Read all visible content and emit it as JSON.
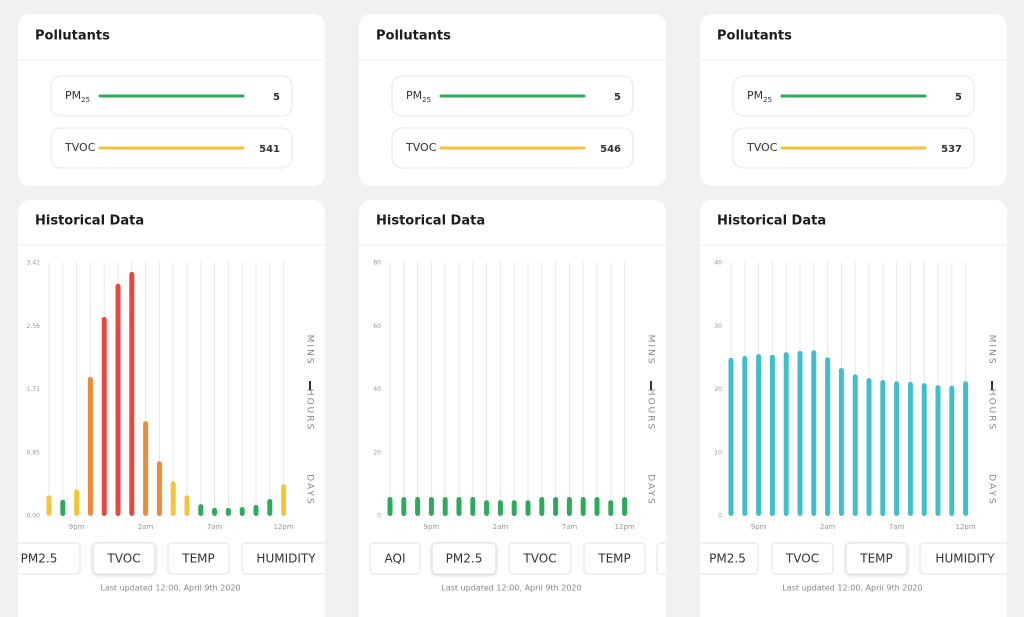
{
  "panels": [
    {
      "pollutants_title": "Pollutants",
      "pollutants": [
        {
          "label": "PM",
          "sub": "25",
          "value": 5,
          "color": "#2eaa5c"
        },
        {
          "label": "TVOC",
          "value": 541,
          "color": "#f5c43a"
        }
      ],
      "history_title": "Historical Data",
      "chart": {
        "type": "bar",
        "categories": [
          null,
          null,
          "9pm",
          null,
          null,
          null,
          null,
          "2am",
          null,
          null,
          null,
          null,
          "7am",
          null,
          null,
          null,
          null,
          "12pm"
        ],
        "values": [
          0.28,
          0.22,
          0.36,
          1.88,
          2.69,
          3.14,
          3.3,
          1.28,
          0.74,
          0.47,
          0.28,
          0.16,
          0.11,
          0.11,
          0.12,
          0.15,
          0.23,
          0.43
        ],
        "colors": [
          "#f5c43a",
          "#2eaa5c",
          "#f5c43a",
          "#ee8a3a",
          "#e8463f",
          "#e8463f",
          "#e8463f",
          "#ee8a3a",
          "#ee8a3a",
          "#f5c43a",
          "#f5c43a",
          "#2eaa5c",
          "#2eaa5c",
          "#2eaa5c",
          "#2eaa5c",
          "#2eaa5c",
          "#2eaa5c",
          "#f5c43a"
        ],
        "ylim": [
          0,
          3.42
        ],
        "yticks": [
          {
            "value": 0,
            "label": "0.00"
          },
          0.85,
          1.71,
          2.56,
          3.42
        ]
      },
      "ranges": [
        "MINS",
        "HOURS",
        "DAYS"
      ],
      "tabs": [
        "PM2.5",
        "TVOC",
        "TEMP",
        "HUMIDITY"
      ],
      "selected_tab": 1,
      "updated": "Last updated 12:00, April 9th 2020"
    },
    {
      "pollutants_title": "Pollutants",
      "pollutants": [
        {
          "label": "PM",
          "sub": "25",
          "value": 5,
          "color": "#2eaa5c"
        },
        {
          "label": "TVOC",
          "value": 546,
          "color": "#f5c43a"
        }
      ],
      "history_title": "Historical Data",
      "chart": {
        "type": "bar",
        "categories": [
          null,
          null,
          null,
          "9pm",
          null,
          null,
          null,
          null,
          "2am",
          null,
          null,
          null,
          null,
          "7am",
          null,
          null,
          null,
          "12pm"
        ],
        "values": [
          6,
          6,
          6,
          6,
          6,
          6,
          6,
          5,
          5,
          5,
          5,
          6,
          6,
          6,
          6,
          6,
          5,
          6
        ],
        "colors": [
          "#2eaa5c",
          "#2eaa5c",
          "#2eaa5c",
          "#2eaa5c",
          "#2eaa5c",
          "#2eaa5c",
          "#2eaa5c",
          "#2eaa5c",
          "#2eaa5c",
          "#2eaa5c",
          "#2eaa5c",
          "#2eaa5c",
          "#2eaa5c",
          "#2eaa5c",
          "#2eaa5c",
          "#2eaa5c",
          "#2eaa5c",
          "#2eaa5c"
        ],
        "ylim": [
          0,
          80
        ],
        "yticks": [
          0,
          20,
          40,
          60,
          80
        ]
      },
      "ranges": [
        "MINS",
        "HOURS",
        "DAYS"
      ],
      "tabs": [
        "AQI",
        "PM2.5",
        "TVOC",
        "TEMP"
      ],
      "selected_tab": 1,
      "updated": "Last updated 12:00, April 9th 2020"
    },
    {
      "pollutants_title": "Pollutants",
      "pollutants": [
        {
          "label": "PM",
          "sub": "25",
          "value": 5,
          "color": "#2eaa5c"
        },
        {
          "label": "TVOC",
          "value": 537,
          "color": "#f5c43a"
        }
      ],
      "history_title": "Historical Data",
      "chart": {
        "type": "bar",
        "categories": [
          null,
          null,
          "9pm",
          null,
          null,
          null,
          null,
          "2am",
          null,
          null,
          null,
          null,
          "7am",
          null,
          null,
          null,
          null,
          "12pm"
        ],
        "values": [
          25,
          25.3,
          25.6,
          25.5,
          25.9,
          26.1,
          26.2,
          25.1,
          23.4,
          22.4,
          21.8,
          21.5,
          21.3,
          21.2,
          21,
          20.7,
          20.6,
          21.3
        ],
        "colors": [
          "#3fbfcc",
          "#3fbfcc",
          "#3fbfcc",
          "#3fbfcc",
          "#3fbfcc",
          "#3fbfcc",
          "#3fbfcc",
          "#3fbfcc",
          "#3fbfcc",
          "#3fbfcc",
          "#3fbfcc",
          "#3fbfcc",
          "#3fbfcc",
          "#3fbfcc",
          "#3fbfcc",
          "#3fbfcc",
          "#3fbfcc",
          "#3fbfcc"
        ],
        "ylim": [
          0,
          40
        ],
        "yticks": [
          0,
          10,
          20,
          30,
          40
        ]
      },
      "ranges": [
        "MINS",
        "HOURS",
        "DAYS"
      ],
      "tabs": [
        "PM2.5",
        "TVOC",
        "TEMP",
        "HUMIDITY"
      ],
      "selected_tab": 2,
      "updated": "Last updated 12:00, April 9th 2020"
    }
  ]
}
